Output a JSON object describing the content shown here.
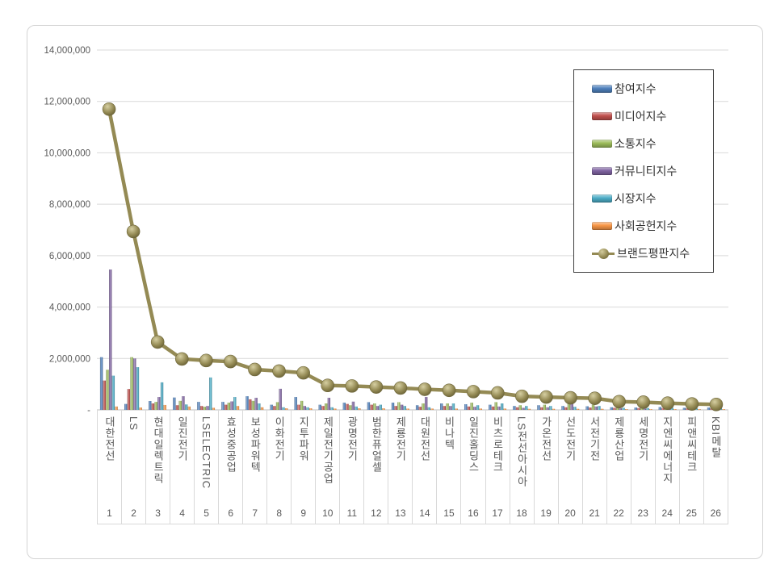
{
  "chart_data": {
    "type": "bar",
    "subtype": "grouped-bars-with-line-overlay",
    "title": "",
    "xlabel": "",
    "ylabel": "",
    "ylim": [
      0,
      14000000
    ],
    "ytick_interval": 2000000,
    "ytick_labels": [
      "-",
      "2,000,000",
      "4,000,000",
      "6,000,000",
      "8,000,000",
      "10,000,000",
      "12,000,000",
      "14,000,000"
    ],
    "grid": "horizontal",
    "legend_position": "upper-right-inside",
    "categories": [
      "대한전선",
      "LS",
      "현대일렉트릭",
      "일진전기",
      "LSELECTRIC",
      "효성중공업",
      "보성파워텍",
      "이화전기",
      "지투파워",
      "제일전기공업",
      "광명전기",
      "범한퓨얼셀",
      "제룡전기",
      "대원전선",
      "비나텍",
      "일진홀딩스",
      "비츠로테크",
      "LS전선아시아",
      "가온전선",
      "선도전기",
      "서전기전",
      "제룡산업",
      "세명전기",
      "지엔씨에너지",
      "피앤씨테크",
      "KBI메탈"
    ],
    "ranks": [
      1,
      2,
      3,
      4,
      5,
      6,
      7,
      8,
      9,
      10,
      11,
      12,
      13,
      14,
      15,
      16,
      17,
      18,
      19,
      20,
      21,
      22,
      23,
      24,
      25,
      26
    ],
    "series": [
      {
        "name": "참여지수",
        "color": "#4f81bd",
        "values": [
          2050000,
          230000,
          345000,
          480000,
          310000,
          310000,
          530000,
          200000,
          500000,
          200000,
          280000,
          300000,
          280000,
          180000,
          250000,
          220000,
          200000,
          150000,
          180000,
          150000,
          140000,
          100000,
          90000,
          110000,
          80000,
          90000
        ]
      },
      {
        "name": "미디어지수",
        "color": "#c0504d",
        "values": [
          1140000,
          810000,
          250000,
          180000,
          150000,
          200000,
          410000,
          150000,
          200000,
          150000,
          230000,
          200000,
          150000,
          120000,
          150000,
          130000,
          130000,
          100000,
          100000,
          100000,
          90000,
          80000,
          70000,
          70000,
          60000,
          60000
        ]
      },
      {
        "name": "소통지수",
        "color": "#9bbb59",
        "values": [
          1560000,
          2050000,
          310000,
          350000,
          120000,
          280000,
          350000,
          300000,
          350000,
          250000,
          180000,
          250000,
          300000,
          250000,
          250000,
          280000,
          300000,
          180000,
          200000,
          250000,
          200000,
          100000,
          110000,
          160000,
          90000,
          100000
        ]
      },
      {
        "name": "커뮤니티지수",
        "color": "#8064a2",
        "values": [
          5460000,
          2000000,
          500000,
          530000,
          150000,
          330000,
          470000,
          820000,
          150000,
          470000,
          320000,
          150000,
          200000,
          500000,
          150000,
          120000,
          130000,
          80000,
          100000,
          300000,
          130000,
          60000,
          50000,
          60000,
          50000,
          60000
        ]
      },
      {
        "name": "시장지수",
        "color": "#4bacc6",
        "values": [
          1330000,
          1660000,
          1070000,
          210000,
          1260000,
          500000,
          250000,
          100000,
          100000,
          100000,
          130000,
          200000,
          150000,
          100000,
          250000,
          180000,
          250000,
          150000,
          150000,
          120000,
          150000,
          80000,
          70000,
          80000,
          60000,
          70000
        ]
      },
      {
        "name": "사회공헌지수",
        "color": "#f79646",
        "values": [
          130000,
          90000,
          190000,
          130000,
          80000,
          150000,
          100000,
          60000,
          60000,
          50000,
          60000,
          60000,
          50000,
          50000,
          50000,
          50000,
          50000,
          40000,
          40000,
          40000,
          40000,
          30000,
          30000,
          30000,
          30000,
          30000
        ]
      }
    ],
    "line_series": {
      "name": "브랜드평판지수",
      "color": "#948a54",
      "values": [
        11700000,
        6940000,
        2640000,
        1980000,
        1920000,
        1880000,
        1570000,
        1510000,
        1440000,
        950000,
        930000,
        890000,
        850000,
        800000,
        760000,
        710000,
        660000,
        530000,
        500000,
        470000,
        450000,
        320000,
        300000,
        260000,
        230000,
        210000
      ]
    },
    "colors": {
      "gridline": "#d9d9d9",
      "axis_line": "#bfbfbf",
      "tick_text": "#595959",
      "legend_border": "#3f3f3f",
      "legend_text": "#303030",
      "frame_border": "#d4d4d4"
    }
  }
}
